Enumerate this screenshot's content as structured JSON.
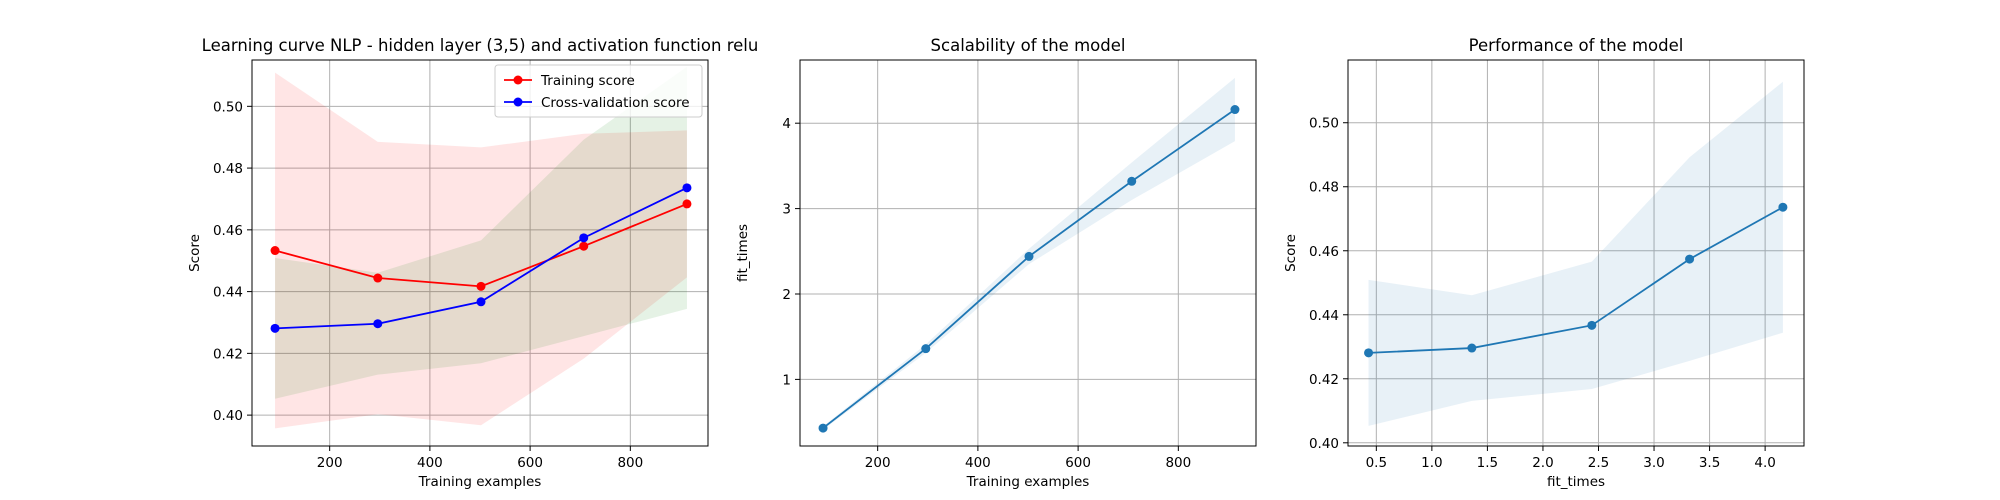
{
  "chart_data": [
    {
      "type": "line",
      "title": "Learning curve NLP - hidden layer (3,5) and activation function relu",
      "xlabel": "Training examples",
      "ylabel": "Score",
      "xlim": [
        45,
        955
      ],
      "ylim": [
        0.39,
        0.515
      ],
      "xticks": [
        200,
        400,
        600,
        800
      ],
      "xtick_labels": [
        "200",
        "400",
        "600",
        "800"
      ],
      "yticks": [
        0.4,
        0.42,
        0.44,
        0.46,
        0.48,
        0.5
      ],
      "ytick_labels": [
        "0.40",
        "0.42",
        "0.44",
        "0.46",
        "0.48",
        "0.50"
      ],
      "grid": true,
      "legend": "top-right",
      "x": [
        91,
        296,
        502,
        707,
        913
      ],
      "series": [
        {
          "name": "Training score",
          "color": "#ff0000",
          "band_color": "#ff0000",
          "values": [
            0.4533,
            0.4444,
            0.4417,
            0.4547,
            0.4684
          ],
          "lower": [
            0.3957,
            0.4003,
            0.3967,
            0.4183,
            0.4446
          ],
          "upper": [
            0.5109,
            0.4885,
            0.4867,
            0.4911,
            0.4922
          ]
        },
        {
          "name": "Cross-validation score",
          "color": "#0000ff",
          "band_color": "#008000",
          "values": [
            0.4281,
            0.4296,
            0.4367,
            0.4574,
            0.4736
          ],
          "lower": [
            0.4053,
            0.4131,
            0.4168,
            0.4256,
            0.4344
          ],
          "upper": [
            0.4509,
            0.4461,
            0.4566,
            0.4892,
            0.5128
          ]
        }
      ]
    },
    {
      "type": "line",
      "title": "Scalability of the model",
      "xlabel": "Training examples",
      "ylabel": "fit_times",
      "xlim": [
        45,
        955
      ],
      "ylim": [
        0.22,
        4.74
      ],
      "xticks": [
        200,
        400,
        600,
        800
      ],
      "xtick_labels": [
        "200",
        "400",
        "600",
        "800"
      ],
      "yticks": [
        1,
        2,
        3,
        4
      ],
      "ytick_labels": [
        "1",
        "2",
        "3",
        "4"
      ],
      "grid": true,
      "x": [
        91,
        296,
        502,
        707,
        913
      ],
      "series": [
        {
          "color": "#1f77b4",
          "band_color": "#1f77b4",
          "values": [
            0.43,
            1.36,
            2.44,
            3.32,
            4.16
          ],
          "lower": [
            0.41,
            1.31,
            2.35,
            3.1,
            3.79
          ],
          "upper": [
            0.45,
            1.41,
            2.53,
            3.54,
            4.53
          ]
        }
      ]
    },
    {
      "type": "line",
      "title": "Performance of the model",
      "xlabel": "fit_times",
      "ylabel": "Score",
      "xlim": [
        0.245,
        4.35
      ],
      "ylim": [
        0.399,
        0.5196
      ],
      "xticks": [
        0.5,
        1.0,
        1.5,
        2.0,
        2.5,
        3.0,
        3.5,
        4.0
      ],
      "xtick_labels": [
        "0.5",
        "1.0",
        "1.5",
        "2.0",
        "2.5",
        "3.0",
        "3.5",
        "4.0"
      ],
      "yticks": [
        0.4,
        0.42,
        0.44,
        0.46,
        0.48,
        0.5
      ],
      "ytick_labels": [
        "0.40",
        "0.42",
        "0.44",
        "0.46",
        "0.48",
        "0.50"
      ],
      "grid": true,
      "x": [
        0.43,
        1.36,
        2.44,
        3.32,
        4.16
      ],
      "series": [
        {
          "color": "#1f77b4",
          "band_color": "#1f77b4",
          "values": [
            0.4281,
            0.4296,
            0.4367,
            0.4574,
            0.4736
          ],
          "lower": [
            0.4053,
            0.4131,
            0.4168,
            0.4256,
            0.4344
          ],
          "upper": [
            0.4509,
            0.4461,
            0.4566,
            0.4892,
            0.5128
          ]
        }
      ]
    }
  ]
}
